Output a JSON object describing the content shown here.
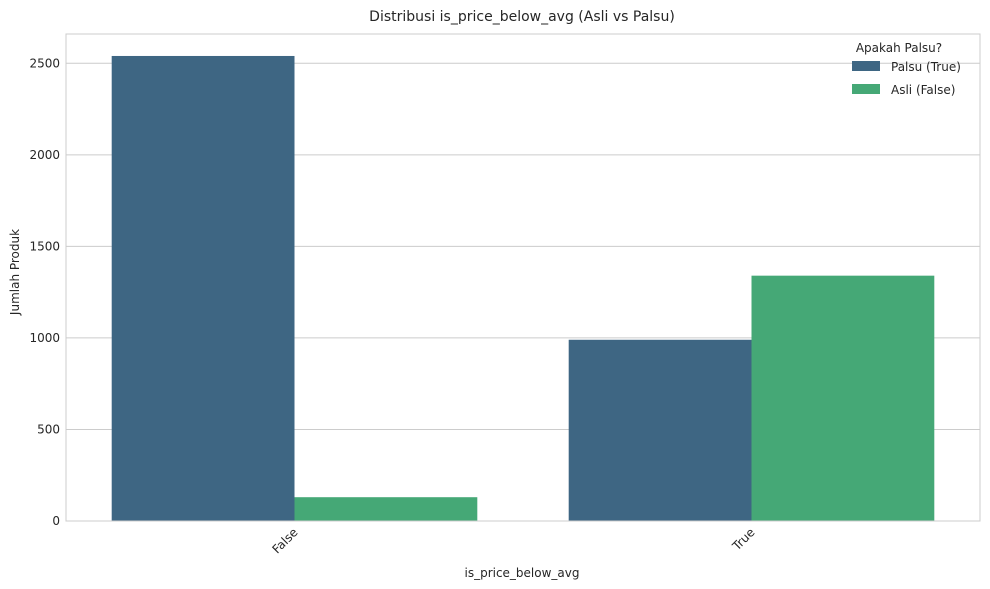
{
  "chart_data": {
    "type": "bar",
    "title": "Distribusi is_price_below_avg (Asli vs Palsu)",
    "xlabel": "is_price_below_avg",
    "ylabel": "Jumlah Produk",
    "categories": [
      "False",
      "True"
    ],
    "series": [
      {
        "name": "Palsu (True)",
        "color": "#3e6683",
        "values": [
          2540,
          990
        ]
      },
      {
        "name": "Asli (False)",
        "color": "#45a876",
        "values": [
          130,
          1340
        ]
      }
    ],
    "ylim": [
      0,
      2660
    ],
    "yticks": [
      0,
      500,
      1000,
      1500,
      2000,
      2500
    ],
    "grid": true,
    "legend": {
      "title": "Apakah Palsu?",
      "placement": "top-right"
    }
  }
}
